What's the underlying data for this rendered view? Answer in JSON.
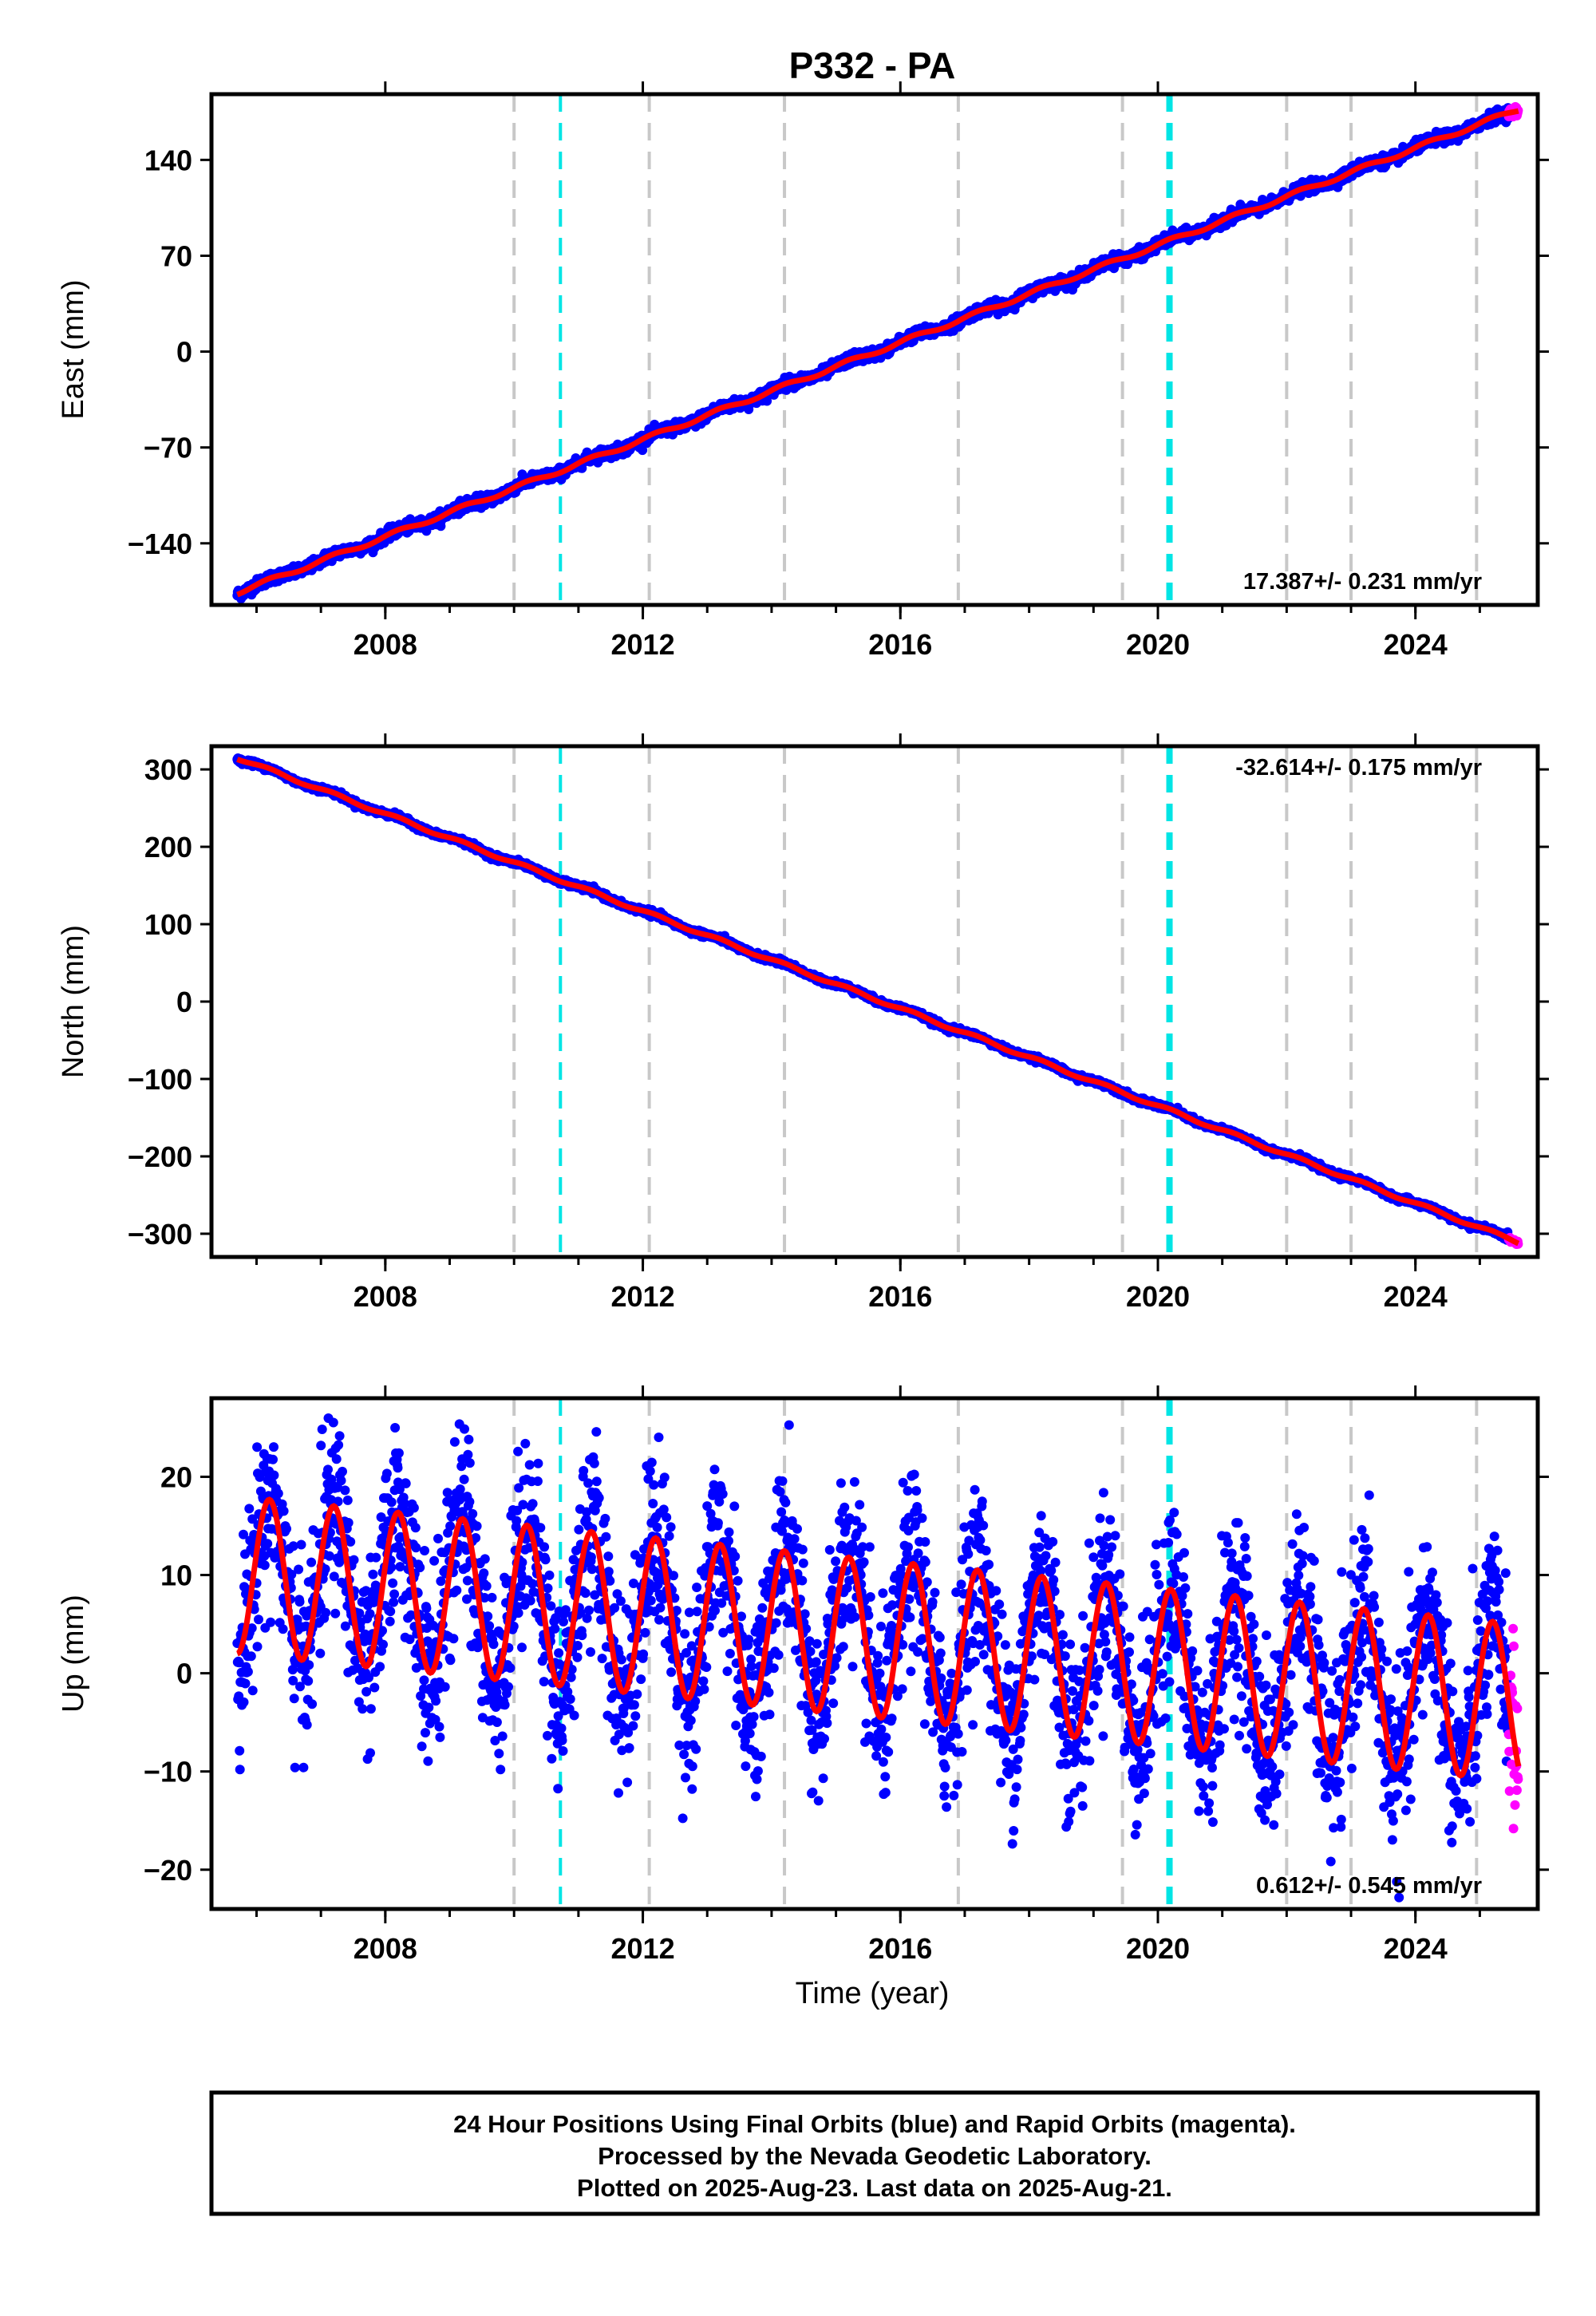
{
  "title": "P332 - PA",
  "colors": {
    "final": "#0000ff",
    "rapid": "#ff00ff",
    "model": "#ff0000",
    "equipment_change": "#c8c8c8",
    "offset": "#00e5e5"
  },
  "xaxis": {
    "label": "Time (year)",
    "ticks": [
      "2008",
      "2012",
      "2016",
      "2020",
      "2024"
    ]
  },
  "footer": {
    "line1": "24 Hour Positions Using Final Orbits (blue) and Rapid Orbits (magenta).",
    "line2": "Processed by the Nevada Geodetic Laboratory.",
    "line3": "Plotted on 2025-Aug-23. Last data on 2025-Aug-21."
  },
  "chart_data": [
    {
      "type": "scatter",
      "component": "east",
      "ylabel": "East (mm)",
      "rate_text": "17.387+/- 0.231 mm/yr",
      "xlim": [
        2005.3,
        2025.9
      ],
      "ylim": [
        -185,
        188
      ],
      "yticks": [
        "140",
        "70",
        "0",
        "−70",
        "−140"
      ],
      "ytick_values": [
        140,
        70,
        0,
        -70,
        -140
      ],
      "start": [
        2005.7,
        -176
      ],
      "end": [
        2025.6,
        177
      ],
      "rate_mm_per_yr": 17.387,
      "seasonal_amplitude_mm": 1.5,
      "scatter_mm": 2.0
    },
    {
      "type": "scatter",
      "component": "north",
      "ylabel": "North (mm)",
      "rate_text": "-32.614+/- 0.175 mm/yr",
      "xlim": [
        2005.3,
        2025.9
      ],
      "ylim": [
        -330,
        330
      ],
      "yticks": [
        "300",
        "200",
        "100",
        "0",
        "−100",
        "−200",
        "−300"
      ],
      "ytick_values": [
        300,
        200,
        100,
        0,
        -100,
        -200,
        -300
      ],
      "start": [
        2005.7,
        315
      ],
      "end": [
        2025.6,
        -311
      ],
      "rate_mm_per_yr": -32.614,
      "seasonal_amplitude_mm": 2.0,
      "scatter_mm": 1.8
    },
    {
      "type": "scatter",
      "component": "up",
      "ylabel": "Up (mm)",
      "rate_text": "0.612+/- 0.545 mm/yr",
      "xlim": [
        2005.3,
        2025.9
      ],
      "ylim": [
        -24,
        28
      ],
      "yticks": [
        "20",
        "10",
        "0",
        "−10",
        "−20"
      ],
      "ytick_values": [
        20,
        10,
        0,
        -10,
        -20
      ],
      "start": [
        2005.7,
        10
      ],
      "end": [
        2025.6,
        -3
      ],
      "rate_mm_per_yr": 0.612,
      "seasonal_amplitude_mm": 8.0,
      "scatter_mm": 4.5
    }
  ],
  "equipment_changes": [
    2010.0,
    2012.1,
    2014.2,
    2016.9,
    2019.45,
    2022.0,
    2023.0,
    2024.95
  ],
  "offsets": [
    2010.72,
    2020.18
  ],
  "rapid_orbits_start": 2025.45
}
